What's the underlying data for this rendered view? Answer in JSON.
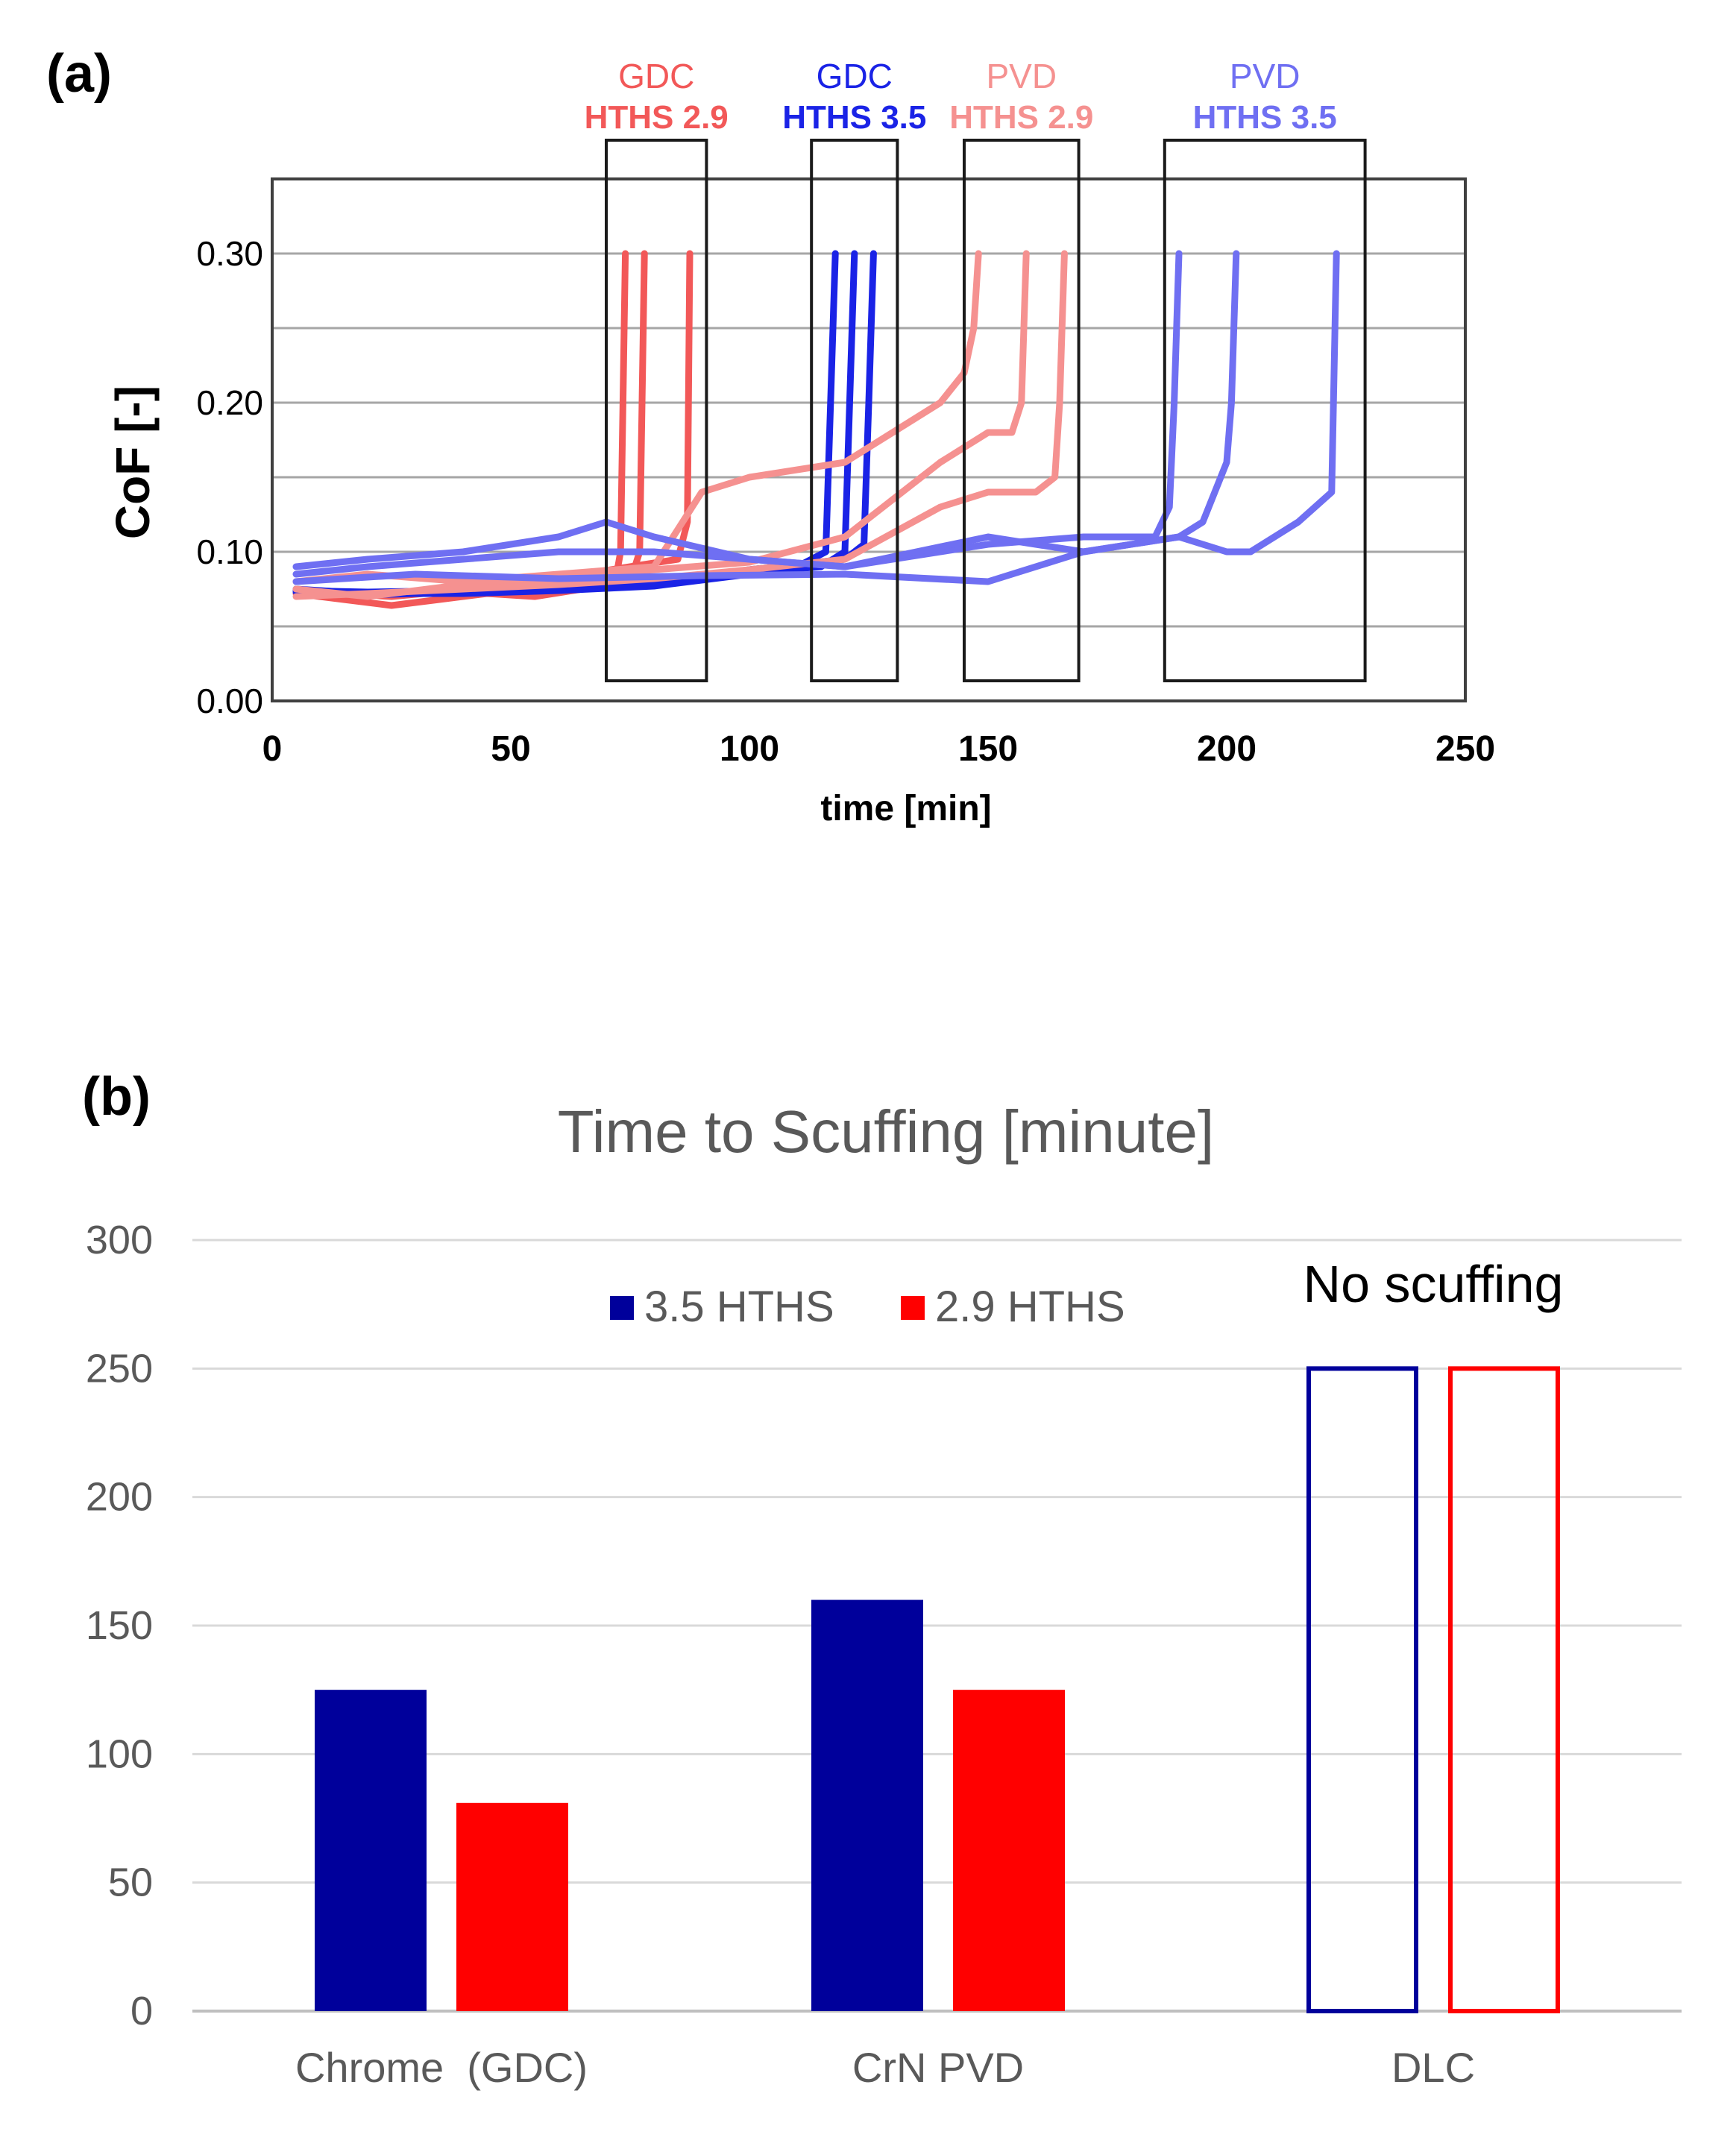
{
  "panel_a_label": "(a)",
  "panel_b_label": "(b)",
  "colors": {
    "gdc29": "#f25858",
    "gdc35": "#1a23e6",
    "pvd29": "#f59190",
    "pvd35": "#6f6ff2",
    "bar_blue": "#00009b",
    "bar_red": "#ff0000",
    "arrow": "#4472c4"
  },
  "chart_data": [
    {
      "type": "line",
      "title": "",
      "xlabel": "time [min]",
      "ylabel": "CoF [-]",
      "xlim": [
        0,
        250
      ],
      "ylim": [
        0,
        0.35
      ],
      "x_ticks": [
        "0",
        "50",
        "100",
        "150",
        "200",
        "250"
      ],
      "y_ticks": [
        "0.00",
        "0.10",
        "0.20",
        "0.30"
      ],
      "annotations": [
        {
          "key": "gdc29",
          "line1": "GDC",
          "line2": "HTHS 2.9",
          "x_range": [
            70,
            91
          ]
        },
        {
          "key": "gdc35",
          "line1": "GDC",
          "line2": "HTHS 3.5",
          "x_range": [
            113,
            131
          ]
        },
        {
          "key": "pvd29",
          "line1": "PVD",
          "line2": "HTHS 2.9",
          "x_range": [
            145,
            169
          ]
        },
        {
          "key": "pvd35",
          "line1": "PVD",
          "line2": "HTHS 3.5",
          "x_range": [
            187,
            229
          ]
        }
      ],
      "series": [
        {
          "name": "GDC HTHS 2.9 run 1",
          "key": "gdc29",
          "x": [
            5,
            15,
            25,
            35,
            45,
            55,
            65,
            72,
            73,
            73.5,
            74
          ],
          "y": [
            0.072,
            0.068,
            0.064,
            0.068,
            0.072,
            0.07,
            0.075,
            0.082,
            0.1,
            0.2,
            0.3
          ]
        },
        {
          "name": "GDC HTHS 2.9 run 2",
          "key": "gdc29",
          "x": [
            5,
            15,
            25,
            35,
            45,
            55,
            65,
            75,
            77,
            77.5,
            78
          ],
          "y": [
            0.075,
            0.07,
            0.072,
            0.075,
            0.073,
            0.076,
            0.078,
            0.08,
            0.1,
            0.2,
            0.3
          ]
        },
        {
          "name": "GDC HTHS 2.9 run 3",
          "key": "gdc29",
          "x": [
            5,
            15,
            25,
            35,
            45,
            55,
            65,
            75,
            85,
            87,
            87.5
          ],
          "y": [
            0.073,
            0.072,
            0.07,
            0.073,
            0.076,
            0.079,
            0.085,
            0.09,
            0.095,
            0.12,
            0.3
          ]
        },
        {
          "name": "GDC HTHS 3.5 run 1",
          "key": "gdc35",
          "x": [
            5,
            20,
            40,
            60,
            80,
            100,
            110,
            116,
            117,
            118
          ],
          "y": [
            0.075,
            0.072,
            0.072,
            0.074,
            0.077,
            0.085,
            0.09,
            0.1,
            0.2,
            0.3
          ]
        },
        {
          "name": "GDC HTHS 3.5 run 2",
          "key": "gdc35",
          "x": [
            5,
            20,
            40,
            60,
            80,
            100,
            115,
            120,
            121,
            122
          ],
          "y": [
            0.073,
            0.071,
            0.073,
            0.075,
            0.079,
            0.086,
            0.09,
            0.1,
            0.2,
            0.3
          ]
        },
        {
          "name": "GDC HTHS 3.5 run 3",
          "key": "gdc35",
          "x": [
            5,
            20,
            40,
            60,
            80,
            100,
            120,
            124,
            125,
            126
          ],
          "y": [
            0.074,
            0.073,
            0.074,
            0.076,
            0.08,
            0.088,
            0.095,
            0.105,
            0.2,
            0.3
          ]
        },
        {
          "name": "PVD HTHS 2.9 run 1",
          "key": "pvd29",
          "x": [
            5,
            20,
            40,
            60,
            80,
            90,
            100,
            120,
            130,
            140,
            145,
            147,
            148
          ],
          "y": [
            0.08,
            0.085,
            0.08,
            0.085,
            0.09,
            0.14,
            0.15,
            0.16,
            0.18,
            0.2,
            0.22,
            0.25,
            0.3
          ]
        },
        {
          "name": "PVD HTHS 2.9 run 2",
          "key": "pvd29",
          "x": [
            5,
            20,
            40,
            60,
            80,
            100,
            120,
            140,
            150,
            155,
            157,
            158
          ],
          "y": [
            0.075,
            0.07,
            0.078,
            0.082,
            0.088,
            0.093,
            0.11,
            0.16,
            0.18,
            0.18,
            0.2,
            0.3
          ]
        },
        {
          "name": "PVD HTHS 2.9 run 3",
          "key": "pvd29",
          "x": [
            5,
            20,
            40,
            60,
            80,
            100,
            120,
            140,
            150,
            160,
            164,
            165,
            166
          ],
          "y": [
            0.07,
            0.072,
            0.075,
            0.078,
            0.082,
            0.088,
            0.095,
            0.13,
            0.14,
            0.14,
            0.15,
            0.2,
            0.3
          ]
        },
        {
          "name": "PVD HTHS 3.5 run 1",
          "key": "pvd35",
          "x": [
            5,
            20,
            40,
            60,
            70,
            80,
            100,
            120,
            150,
            170,
            185,
            188,
            189,
            190
          ],
          "y": [
            0.09,
            0.095,
            0.1,
            0.11,
            0.12,
            0.11,
            0.095,
            0.09,
            0.105,
            0.11,
            0.11,
            0.13,
            0.2,
            0.3
          ]
        },
        {
          "name": "PVD HTHS 3.5 run 2",
          "key": "pvd35",
          "x": [
            5,
            20,
            40,
            60,
            80,
            100,
            120,
            150,
            170,
            190,
            195,
            200,
            201,
            202
          ],
          "y": [
            0.085,
            0.09,
            0.095,
            0.1,
            0.1,
            0.095,
            0.09,
            0.11,
            0.1,
            0.11,
            0.12,
            0.16,
            0.2,
            0.3
          ]
        },
        {
          "name": "PVD HTHS 3.5 run 3",
          "key": "pvd35",
          "x": [
            5,
            30,
            60,
            90,
            120,
            150,
            170,
            190,
            200,
            205,
            210,
            215,
            222,
            223
          ],
          "y": [
            0.08,
            0.085,
            0.082,
            0.084,
            0.085,
            0.08,
            0.1,
            0.11,
            0.1,
            0.1,
            0.11,
            0.12,
            0.14,
            0.3
          ]
        }
      ]
    },
    {
      "type": "bar",
      "title": "Time to Scuffing [minute]",
      "xlabel": "",
      "ylabel": "",
      "ylim": [
        0,
        300
      ],
      "y_ticks": [
        "0",
        "50",
        "100",
        "150",
        "200",
        "250",
        "300"
      ],
      "categories": [
        "Chrome  (GDC)",
        "CrN PVD",
        "DLC"
      ],
      "legend": {
        "position": "top-center"
      },
      "series": [
        {
          "name": "3.5 HTHS",
          "key": "bar_blue",
          "values": [
            125,
            160,
            250
          ],
          "hollow": [
            false,
            false,
            true
          ]
        },
        {
          "name": "2.9 HTHS",
          "key": "bar_red",
          "values": [
            81,
            125,
            250
          ],
          "hollow": [
            false,
            false,
            true
          ]
        }
      ],
      "annotations": [
        {
          "text": "No scuffing",
          "category": "DLC"
        }
      ]
    }
  ]
}
